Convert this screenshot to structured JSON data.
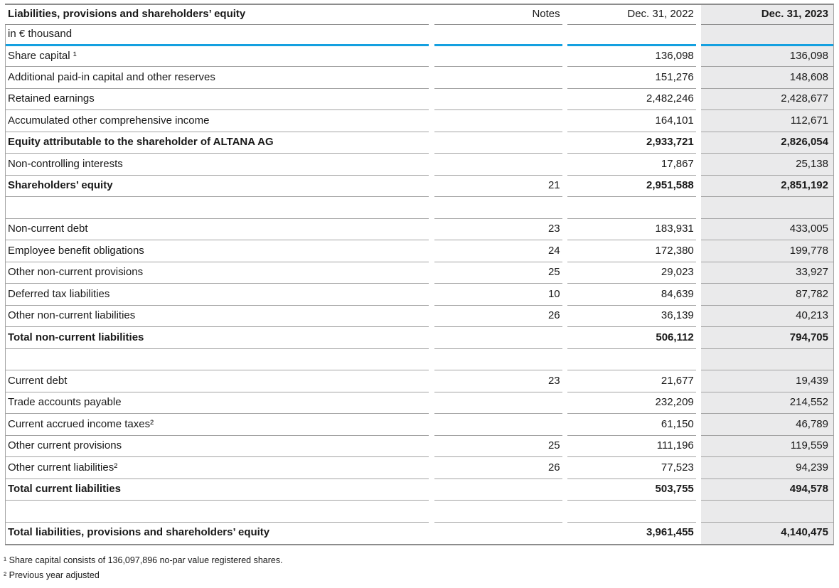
{
  "colors": {
    "accent_blue": "#14A0E0",
    "highlight_bg": "#EAEAEB",
    "row_border": "#A3A3A3",
    "frame_border": "#8C8C8C",
    "text": "#1A1A1A"
  },
  "table": {
    "title": "Liabilities, provisions and shareholders’ equity",
    "unit_label": "in € thousand",
    "columns": {
      "notes": "Notes",
      "y2022": "Dec. 31, 2022",
      "y2023": "Dec. 31, 2023"
    },
    "rows": [
      {
        "label": "Share capital ¹",
        "notes": "",
        "v2022": "136,098",
        "v2023": "136,098"
      },
      {
        "label": "Additional paid-in capital and other reserves",
        "notes": "",
        "v2022": "151,276",
        "v2023": "148,608"
      },
      {
        "label": "Retained earnings",
        "notes": "",
        "v2022": "2,482,246",
        "v2023": "2,428,677"
      },
      {
        "label": "Accumulated other comprehensive income",
        "notes": "",
        "v2022": "164,101",
        "v2023": "112,671"
      },
      {
        "label": "Equity attributable to the shareholder of ALTANA AG",
        "bold": true,
        "notes": "",
        "v2022": "2,933,721",
        "v2023": "2,826,054"
      },
      {
        "label": "Non-controlling interests",
        "notes": "",
        "v2022": "17,867",
        "v2023": "25,138"
      },
      {
        "label": "Shareholders’ equity",
        "bold": true,
        "notes": "21",
        "v2022": "2,951,588",
        "v2023": "2,851,192"
      },
      {
        "spacer": true
      },
      {
        "label": "Non-current debt",
        "notes": "23",
        "v2022": "183,931",
        "v2023": "433,005"
      },
      {
        "label": "Employee benefit obligations",
        "notes": "24",
        "v2022": "172,380",
        "v2023": "199,778"
      },
      {
        "label": "Other non-current provisions",
        "notes": "25",
        "v2022": "29,023",
        "v2023": "33,927"
      },
      {
        "label": "Deferred tax liabilities",
        "notes": "10",
        "v2022": "84,639",
        "v2023": "87,782"
      },
      {
        "label": "Other non-current liabilities",
        "notes": "26",
        "v2022": "36,139",
        "v2023": "40,213"
      },
      {
        "label": "Total non-current liabilities",
        "bold": true,
        "notes": "",
        "v2022": "506,112",
        "v2023": "794,705"
      },
      {
        "spacer": true
      },
      {
        "label": "Current debt",
        "notes": "23",
        "v2022": "21,677",
        "v2023": "19,439"
      },
      {
        "label": "Trade accounts payable",
        "notes": "",
        "v2022": "232,209",
        "v2023": "214,552"
      },
      {
        "label": "Current accrued income taxes²",
        "notes": "",
        "v2022": "61,150",
        "v2023": "46,789"
      },
      {
        "label": "Other current provisions",
        "notes": "25",
        "v2022": "111,196",
        "v2023": "119,559"
      },
      {
        "label": "Other current liabilities²",
        "notes": "26",
        "v2022": "77,523",
        "v2023": "94,239"
      },
      {
        "label": "Total current liabilities",
        "bold": true,
        "notes": "",
        "v2022": "503,755",
        "v2023": "494,578"
      },
      {
        "spacer": true
      },
      {
        "label": "Total liabilities, provisions and shareholders’ equity",
        "bold": true,
        "total": true,
        "notes": "",
        "v2022": "3,961,455",
        "v2023": "4,140,475"
      }
    ]
  },
  "footnotes": [
    "¹ Share capital consists of 136,097,896 no-par value registered shares.",
    "² Previous year adjusted"
  ]
}
